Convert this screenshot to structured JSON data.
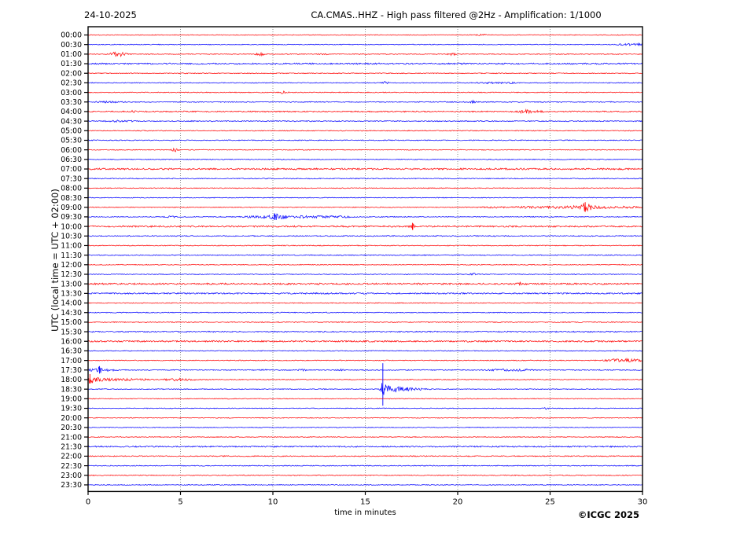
{
  "header": {
    "date_label": "24-10-2025",
    "title": "CA.CMAS..HHZ - High pass filtered @2Hz - Amplification: 1/1000"
  },
  "footer": {
    "copyright": "©ICGC 2025"
  },
  "chart_data": {
    "type": "line",
    "subtype": "helicorder-seismogram",
    "title": "CA.CMAS..HHZ - High pass filtered @2Hz - Amplification: 1/1000",
    "date": "24-10-2025",
    "xlabel": "time in minutes",
    "ylabel": "UTC (local time = UTC + 02:00)",
    "xlim": [
      0,
      30
    ],
    "x_ticks": [
      0,
      5,
      10,
      15,
      20,
      25,
      30
    ],
    "grid": "vertical dotted lines every 5 minutes",
    "legend": "none",
    "colors": {
      "red": "#ff0000",
      "blue": "#0000ff",
      "grid": "#777777",
      "frame": "#000000"
    },
    "row_color_pattern": "alternating red (on-hour) / blue (half-hour)",
    "rows": [
      {
        "label": "00:00",
        "color": "red",
        "noise": 0.45,
        "events": [
          [
            21.3,
            0.9,
            0.3
          ]
        ],
        "spikes": []
      },
      {
        "label": "00:30",
        "color": "blue",
        "noise": 0.45,
        "events": [
          [
            29.1,
            1.1,
            0.5
          ],
          [
            29.8,
            1.0,
            0.3
          ]
        ],
        "spikes": []
      },
      {
        "label": "01:00",
        "color": "red",
        "noise": 0.5,
        "events": [
          [
            1.4,
            1.6,
            0.25
          ],
          [
            1.75,
            2.2,
            0.3
          ],
          [
            9.3,
            1.8,
            0.2
          ],
          [
            12.7,
            0.9,
            0.2
          ],
          [
            19.7,
            1.3,
            0.2
          ]
        ],
        "spikes": []
      },
      {
        "label": "01:30",
        "color": "blue",
        "noise": 0.85,
        "events": [],
        "spikes": []
      },
      {
        "label": "02:00",
        "color": "red",
        "noise": 0.5,
        "events": [],
        "spikes": []
      },
      {
        "label": "02:30",
        "color": "blue",
        "noise": 0.5,
        "events": [
          [
            16.1,
            1.6,
            0.15
          ],
          [
            21.8,
            0.7,
            0.7
          ],
          [
            22.8,
            0.6,
            0.5
          ]
        ],
        "spikes": []
      },
      {
        "label": "03:00",
        "color": "red",
        "noise": 0.5,
        "events": [
          [
            10.6,
            1.6,
            0.2
          ]
        ],
        "spikes": []
      },
      {
        "label": "03:30",
        "color": "blue",
        "noise": 0.55,
        "events": [
          [
            1.0,
            0.7,
            0.8
          ],
          [
            20.8,
            1.8,
            0.15
          ]
        ],
        "spikes": []
      },
      {
        "label": "04:00",
        "color": "red",
        "noise": 0.75,
        "events": [
          [
            2.5,
            1.0,
            0.2
          ],
          [
            23.6,
            2.0,
            0.3
          ],
          [
            24.3,
            1.0,
            0.5
          ]
        ],
        "spikes": []
      },
      {
        "label": "04:30",
        "color": "blue",
        "noise": 0.6,
        "events": [
          [
            1.8,
            0.9,
            0.7
          ]
        ],
        "spikes": []
      },
      {
        "label": "05:00",
        "color": "red",
        "noise": 0.5,
        "events": [],
        "spikes": []
      },
      {
        "label": "05:30",
        "color": "blue",
        "noise": 0.55,
        "events": [],
        "spikes": []
      },
      {
        "label": "06:00",
        "color": "red",
        "noise": 0.45,
        "events": [
          [
            4.7,
            2.2,
            0.15
          ]
        ],
        "spikes": []
      },
      {
        "label": "06:30",
        "color": "blue",
        "noise": 0.5,
        "events": [],
        "spikes": []
      },
      {
        "label": "07:00",
        "color": "red",
        "noise": 1.0,
        "events": [],
        "spikes": []
      },
      {
        "label": "07:30",
        "color": "blue",
        "noise": 0.55,
        "events": [],
        "spikes": []
      },
      {
        "label": "08:00",
        "color": "red",
        "noise": 0.5,
        "events": [],
        "spikes": []
      },
      {
        "label": "08:30",
        "color": "blue",
        "noise": 0.45,
        "events": [],
        "spikes": []
      },
      {
        "label": "09:00",
        "color": "red",
        "noise": 0.5,
        "events": [
          [
            22.0,
            0.7,
            0.6
          ],
          [
            23.8,
            1.1,
            0.8
          ],
          [
            25.3,
            1.4,
            0.6
          ],
          [
            26.3,
            1.8,
            0.4
          ],
          [
            26.9,
            5.5,
            0.22
          ],
          [
            27.3,
            2.6,
            0.35
          ],
          [
            28.2,
            1.3,
            0.6
          ],
          [
            29.3,
            1.0,
            0.6
          ]
        ],
        "spikes": [
          [
            26.9,
            6.5,
            6.0
          ]
        ]
      },
      {
        "label": "09:30",
        "color": "blue",
        "noise": 0.5,
        "events": [
          [
            4.5,
            0.9,
            0.3
          ],
          [
            8.9,
            0.9,
            0.6
          ],
          [
            9.7,
            1.6,
            0.3
          ],
          [
            10.1,
            3.8,
            0.18
          ],
          [
            10.5,
            2.0,
            0.3
          ],
          [
            11.3,
            1.3,
            0.6
          ],
          [
            12.6,
            1.1,
            0.8
          ],
          [
            13.8,
            0.8,
            0.6
          ]
        ],
        "spikes": [
          [
            10.1,
            4.5,
            4.0
          ]
        ]
      },
      {
        "label": "10:00",
        "color": "red",
        "noise": 0.95,
        "events": [
          [
            17.55,
            3.8,
            0.12
          ]
        ],
        "spikes": [
          [
            17.55,
            4.5,
            4.0
          ]
        ]
      },
      {
        "label": "10:30",
        "color": "blue",
        "noise": 0.6,
        "events": [],
        "spikes": []
      },
      {
        "label": "11:00",
        "color": "red",
        "noise": 0.5,
        "events": [],
        "spikes": []
      },
      {
        "label": "11:30",
        "color": "blue",
        "noise": 0.6,
        "events": [],
        "spikes": []
      },
      {
        "label": "12:00",
        "color": "red",
        "noise": 0.5,
        "events": [],
        "spikes": []
      },
      {
        "label": "12:30",
        "color": "blue",
        "noise": 0.5,
        "events": [
          [
            20.8,
            1.4,
            0.2
          ]
        ],
        "spikes": []
      },
      {
        "label": "13:00",
        "color": "red",
        "noise": 1.0,
        "events": [
          [
            23.3,
            1.6,
            0.15
          ]
        ],
        "spikes": []
      },
      {
        "label": "13:30",
        "color": "blue",
        "noise": 0.85,
        "events": [],
        "spikes": []
      },
      {
        "label": "14:00",
        "color": "red",
        "noise": 0.5,
        "events": [],
        "spikes": []
      },
      {
        "label": "14:30",
        "color": "blue",
        "noise": 0.5,
        "events": [],
        "spikes": []
      },
      {
        "label": "15:00",
        "color": "red",
        "noise": 0.55,
        "events": [],
        "spikes": []
      },
      {
        "label": "15:30",
        "color": "blue",
        "noise": 0.75,
        "events": [],
        "spikes": []
      },
      {
        "label": "16:00",
        "color": "red",
        "noise": 0.95,
        "events": [],
        "spikes": []
      },
      {
        "label": "16:30",
        "color": "blue",
        "noise": 0.5,
        "events": [],
        "spikes": []
      },
      {
        "label": "17:00",
        "color": "red",
        "noise": 0.5,
        "events": [
          [
            28.5,
            1.8,
            0.5
          ],
          [
            29.4,
            1.9,
            0.5
          ]
        ],
        "spikes": []
      },
      {
        "label": "17:30",
        "color": "blue",
        "noise": 0.55,
        "events": [
          [
            0.25,
            1.4,
            0.2
          ],
          [
            0.62,
            4.2,
            0.15
          ],
          [
            1.1,
            1.0,
            0.4
          ],
          [
            9.5,
            0.7,
            0.2
          ],
          [
            11.6,
            0.8,
            0.25
          ],
          [
            13.7,
            0.7,
            0.2
          ],
          [
            22.3,
            1.1,
            0.6
          ],
          [
            23.4,
            1.0,
            0.5
          ]
        ],
        "spikes": [
          [
            0.62,
            5.0,
            4.5
          ]
        ]
      },
      {
        "label": "18:00",
        "color": "red",
        "noise": 0.5,
        "events": [
          [
            0.1,
            4.5,
            0.2
          ],
          [
            0.5,
            2.2,
            0.4
          ],
          [
            1.3,
            1.3,
            0.5
          ],
          [
            2.2,
            1.1,
            0.4
          ],
          [
            3.0,
            0.9,
            0.4
          ],
          [
            4.7,
            1.3,
            0.7
          ],
          [
            5.6,
            0.7,
            0.4
          ]
        ],
        "spikes": [
          [
            0.1,
            7.0,
            5.0
          ]
        ]
      },
      {
        "label": "18:30",
        "color": "blue",
        "noise": 0.5,
        "events": [
          [
            15.95,
            8.0,
            0.12
          ],
          [
            16.15,
            6.0,
            0.25
          ],
          [
            16.6,
            3.5,
            0.35
          ],
          [
            17.2,
            1.8,
            0.4
          ],
          [
            17.9,
            0.9,
            0.4
          ]
        ],
        "spikes": [
          [
            15.95,
            33.0,
            21.0
          ]
        ]
      },
      {
        "label": "19:00",
        "color": "red",
        "noise": 0.45,
        "events": [],
        "spikes": []
      },
      {
        "label": "19:30",
        "color": "blue",
        "noise": 0.45,
        "events": [
          [
            24.8,
            1.0,
            0.15
          ]
        ],
        "spikes": []
      },
      {
        "label": "20:00",
        "color": "red",
        "noise": 0.45,
        "events": [],
        "spikes": []
      },
      {
        "label": "20:30",
        "color": "blue",
        "noise": 0.45,
        "events": [],
        "spikes": []
      },
      {
        "label": "21:00",
        "color": "red",
        "noise": 0.45,
        "events": [],
        "spikes": []
      },
      {
        "label": "21:30",
        "color": "blue",
        "noise": 0.8,
        "events": [],
        "spikes": []
      },
      {
        "label": "22:00",
        "color": "red",
        "noise": 0.6,
        "events": [],
        "spikes": []
      },
      {
        "label": "22:30",
        "color": "blue",
        "noise": 0.55,
        "events": [],
        "spikes": []
      },
      {
        "label": "23:00",
        "color": "red",
        "noise": 0.55,
        "events": [],
        "spikes": []
      },
      {
        "label": "23:30",
        "color": "blue",
        "noise": 0.5,
        "events": [],
        "spikes": []
      }
    ],
    "event_format": "events: [minute, amplitude_px, gaussian_width_min]; spikes: [minute, up_px, down_px]"
  }
}
